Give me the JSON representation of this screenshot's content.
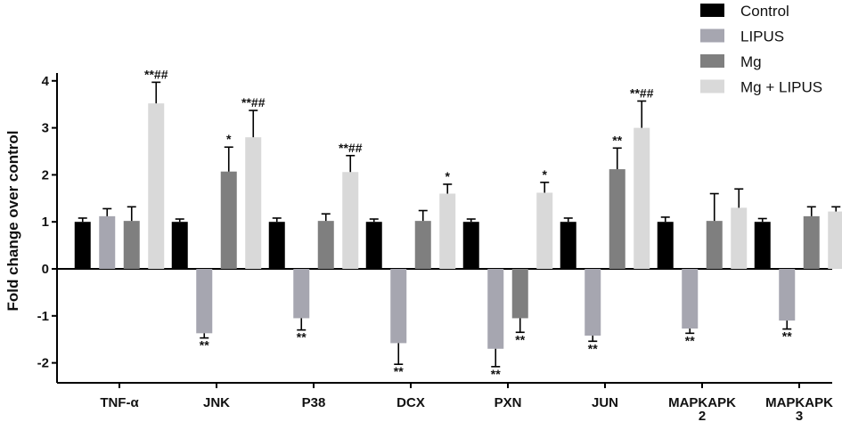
{
  "chart_data": {
    "type": "bar",
    "title": "",
    "ylabel": "Fold change over control",
    "xlabel": "",
    "ylim": [
      -2.5,
      4
    ],
    "yticks": [
      -2,
      -1,
      0,
      1,
      2,
      3,
      4
    ],
    "categories": [
      {
        "lines": [
          "TNF-α"
        ]
      },
      {
        "lines": [
          "JNK"
        ]
      },
      {
        "lines": [
          "P38"
        ]
      },
      {
        "lines": [
          "DCX"
        ]
      },
      {
        "lines": [
          "PXN"
        ]
      },
      {
        "lines": [
          "JUN"
        ]
      },
      {
        "lines": [
          "MAPKAPK",
          "2"
        ]
      },
      {
        "lines": [
          "MAPKAPK",
          "3"
        ]
      }
    ],
    "legend_position": "top-right",
    "series": [
      {
        "name": "Control",
        "color": "#000000",
        "values": [
          1.0,
          1.0,
          1.0,
          1.0,
          1.0,
          1.0,
          1.0,
          1.0
        ],
        "errors": [
          0.08,
          0.06,
          0.08,
          0.06,
          0.06,
          0.08,
          0.1,
          0.07
        ],
        "sig": [
          "",
          "",
          "",
          "",
          "",
          "",
          "",
          ""
        ]
      },
      {
        "name": "LIPUS",
        "color": "#a6a6b0",
        "values": [
          1.12,
          -1.37,
          -1.05,
          -1.58,
          -1.7,
          -1.42,
          -1.27,
          -1.1
        ],
        "errors": [
          0.16,
          0.1,
          0.25,
          0.45,
          0.38,
          0.12,
          0.1,
          0.18
        ],
        "sig": [
          "",
          "**",
          "**",
          "**",
          "**",
          "**",
          "**",
          "**"
        ]
      },
      {
        "name": "Mg",
        "color": "#7f7f7f",
        "values": [
          1.02,
          2.07,
          1.02,
          1.02,
          -1.05,
          2.12,
          1.02,
          1.12
        ],
        "errors": [
          0.3,
          0.52,
          0.15,
          0.22,
          0.3,
          0.45,
          0.58,
          0.2
        ],
        "sig": [
          "",
          "*",
          "",
          "",
          "**",
          "**",
          "",
          ""
        ]
      },
      {
        "name": "Mg + LIPUS",
        "color": "#d9d9d9",
        "values": [
          3.52,
          2.8,
          2.06,
          1.6,
          1.62,
          3.0,
          1.3,
          1.22
        ],
        "errors": [
          0.45,
          0.57,
          0.35,
          0.2,
          0.22,
          0.57,
          0.4,
          0.1
        ],
        "sig": [
          "**##",
          "**##",
          "**##",
          "*",
          "*",
          "**##",
          "",
          ""
        ]
      }
    ]
  }
}
